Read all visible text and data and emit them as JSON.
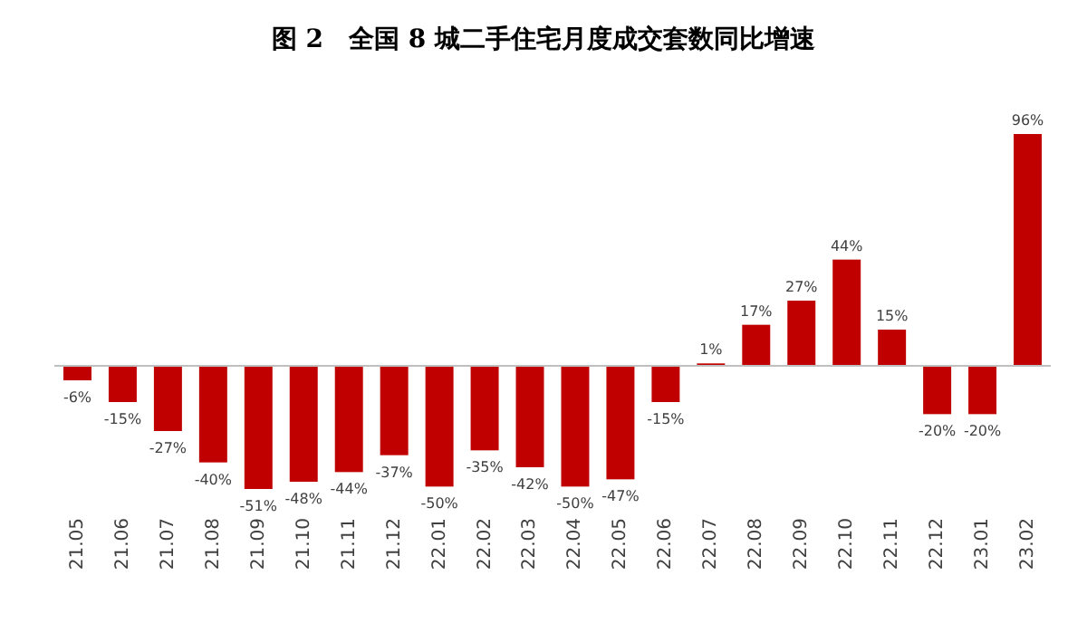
{
  "chart_data": {
    "type": "bar",
    "title": "图 2　全国 8 城二手住宅月度成交套数同比增速",
    "categories": [
      "21.05",
      "21.06",
      "21.07",
      "21.08",
      "21.09",
      "21.10",
      "21.11",
      "21.12",
      "22.01",
      "22.02",
      "22.03",
      "22.04",
      "22.05",
      "22.06",
      "22.07",
      "22.08",
      "22.09",
      "22.10",
      "22.11",
      "22.12",
      "23.01",
      "23.02"
    ],
    "values": [
      -6,
      -15,
      -27,
      -40,
      -51,
      -48,
      -44,
      -37,
      -50,
      -35,
      -42,
      -50,
      -47,
      -15,
      1,
      17,
      27,
      44,
      15,
      -20,
      -20,
      96
    ],
    "value_labels": [
      "-6%",
      "-15%",
      "-27%",
      "-40%",
      "-51%",
      "-48%",
      "-44%",
      "-37%",
      "-50%",
      "-35%",
      "-42%",
      "-50%",
      "-47%",
      "-15%",
      "1%",
      "17%",
      "27%",
      "44%",
      "15%",
      "-20%",
      "-20%",
      "96%"
    ],
    "color": "#c00000"
  }
}
